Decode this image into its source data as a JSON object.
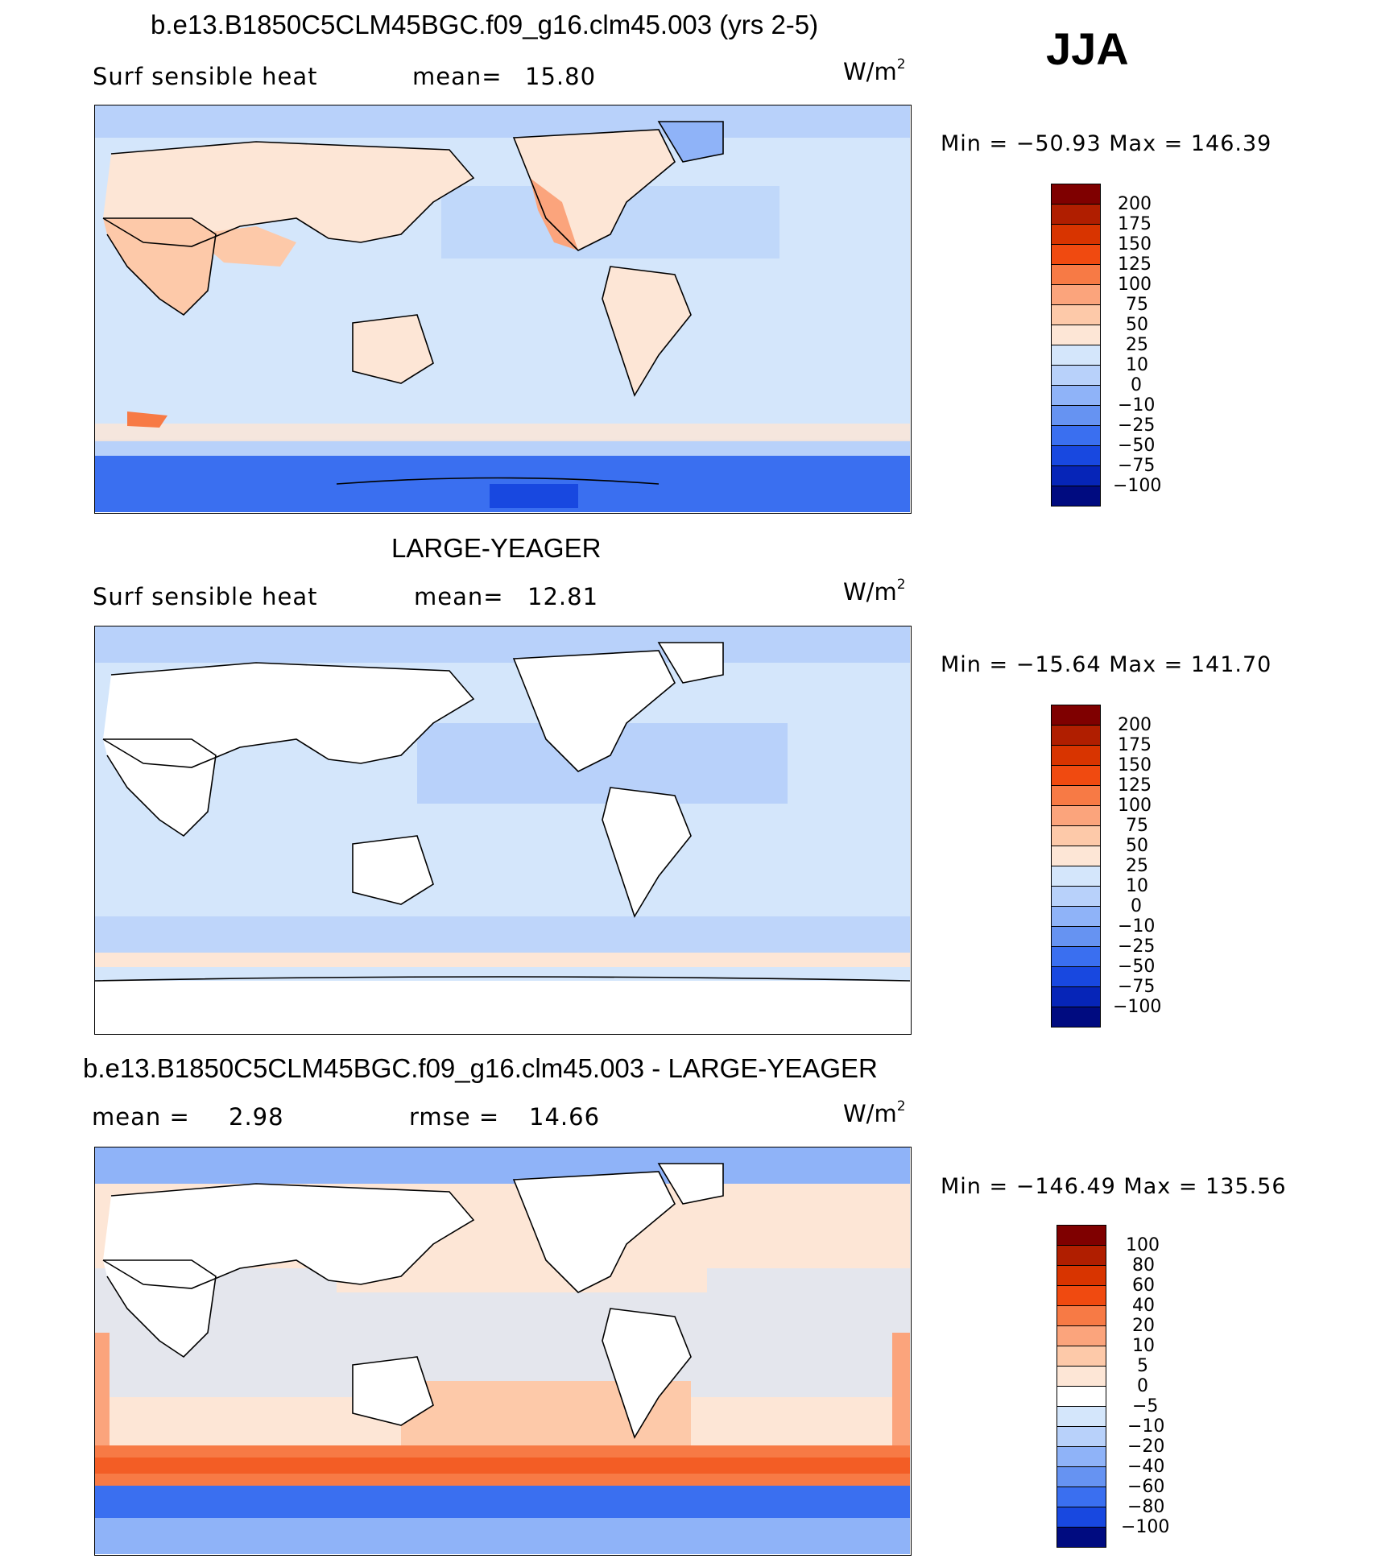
{
  "season": "JJA",
  "panels": [
    {
      "id": "model",
      "title": "b.e13.B1850C5CLM45BGC.f09_g16.clm45.003 (yrs 2-5)",
      "variable": "Surf  sensible  heat",
      "stat1_label": "mean=",
      "stat1_value": "15.80",
      "units": "W/m",
      "units_exp": "2",
      "min_label": "Min",
      "min_value": "−50.93",
      "max_label": "Max",
      "max_value": "146.39",
      "levels": [
        "200",
        "175",
        "150",
        "125",
        "100",
        "75",
        "50",
        "25",
        "10",
        "0",
        "−10",
        "−25",
        "−50",
        "−75",
        "−100"
      ]
    },
    {
      "id": "obs",
      "title": "LARGE-YEAGER",
      "variable": "Surf  sensible  heat",
      "stat1_label": "mean=",
      "stat1_value": "12.81",
      "units": "W/m",
      "units_exp": "2",
      "min_label": "Min",
      "min_value": "−15.64",
      "max_label": "Max",
      "max_value": "141.70",
      "levels": [
        "200",
        "175",
        "150",
        "125",
        "100",
        "75",
        "50",
        "25",
        "10",
        "0",
        "−10",
        "−25",
        "−50",
        "−75",
        "−100"
      ]
    },
    {
      "id": "diff",
      "title": "b.e13.B1850C5CLM45BGC.f09_g16.clm45.003 - LARGE-YEAGER",
      "stat1_label": "mean  =",
      "stat1_value": "2.98",
      "stat2_label": "rmse  =",
      "stat2_value": "14.66",
      "units": "W/m",
      "units_exp": "2",
      "min_label": "Min",
      "min_value": "−146.49",
      "max_label": "Max",
      "max_value": "135.56",
      "levels": [
        "100",
        "80",
        "60",
        "40",
        "20",
        "10",
        "5",
        "0",
        "−5",
        "−10",
        "−20",
        "−40",
        "−60",
        "−80",
        "−100"
      ]
    }
  ],
  "colors": {
    "scale": [
      "#7f0000",
      "#b01e00",
      "#d83400",
      "#f04a10",
      "#f77a45",
      "#fba47c",
      "#fdc9a9",
      "#fde6d6",
      "#d4e6fb",
      "#b8d1fa",
      "#8fb3f8",
      "#6693f2",
      "#3a6ff0",
      "#1848e0",
      "#0625b8",
      "#000b80"
    ],
    "land_blank": "#ffffff",
    "coast": "#000000"
  }
}
